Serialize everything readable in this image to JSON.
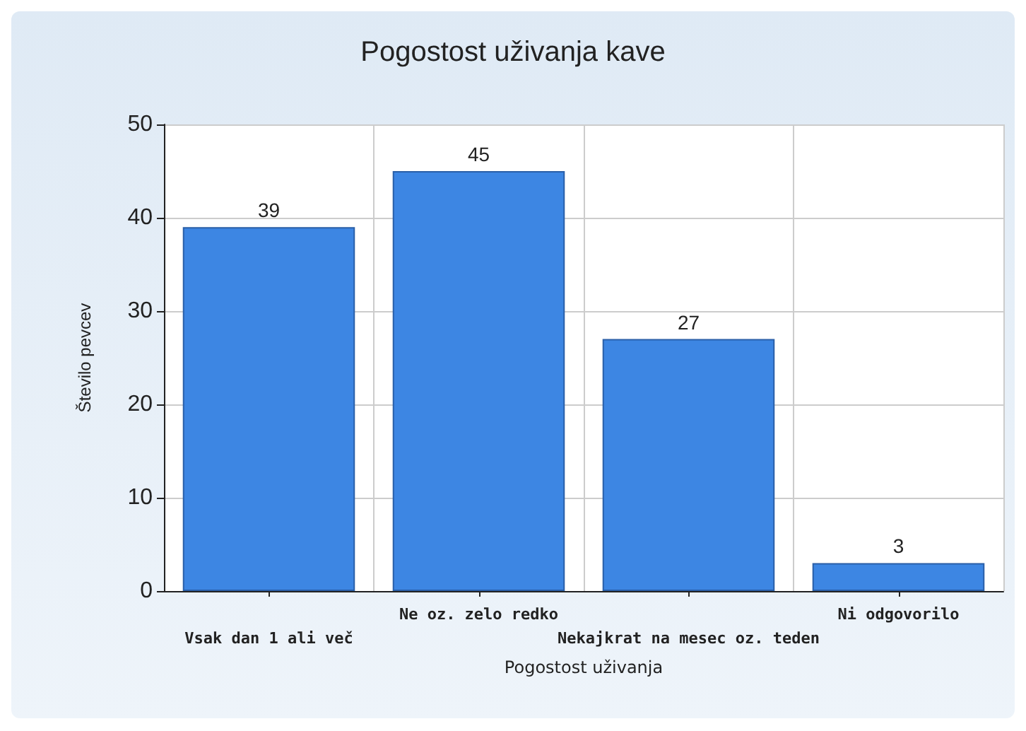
{
  "chart_data": {
    "type": "bar",
    "title": "Pogostost uživanja kave",
    "xlabel": "Pogostost uživanja",
    "ylabel": "Število pevcev",
    "categories": [
      "Vsak dan 1 ali več",
      "Ne oz. zelo redko",
      "Nekajkrat na mesec oz. teden",
      "Ni odgovorilo"
    ],
    "values": [
      39,
      45,
      27,
      3
    ],
    "color": "#3d86e3",
    "ylim": [
      0,
      50
    ],
    "yticks": [
      0,
      10,
      20,
      30,
      40,
      50
    ],
    "grid": true,
    "data_labels": true
  }
}
